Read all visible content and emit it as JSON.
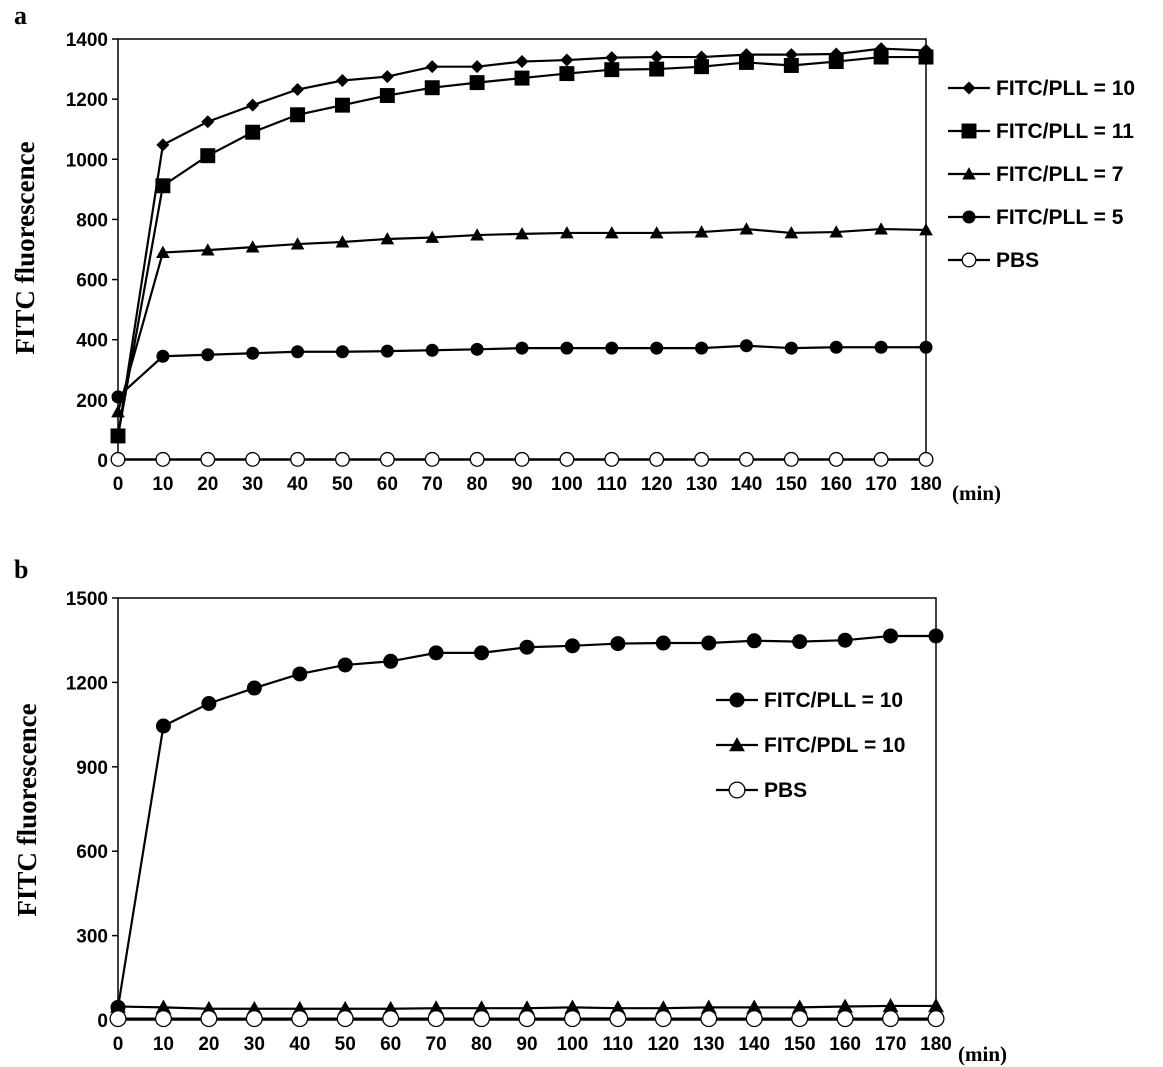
{
  "chart_data": [
    {
      "panel": "a",
      "type": "line",
      "ylabel": "FITC fluorescence",
      "xunit": "(min)",
      "x": [
        0,
        10,
        20,
        30,
        40,
        50,
        60,
        70,
        80,
        90,
        100,
        110,
        120,
        130,
        140,
        150,
        160,
        170,
        180
      ],
      "ylim": [
        0,
        1400
      ],
      "yticks": [
        0,
        200,
        400,
        600,
        800,
        1000,
        1200,
        1400
      ],
      "grid": false,
      "legend_position": "right",
      "series": [
        {
          "name": "FITC/PLL = 10",
          "marker": "diamond",
          "values": [
            80,
            1048,
            1125,
            1180,
            1232,
            1262,
            1275,
            1308,
            1308,
            1325,
            1330,
            1338,
            1340,
            1340,
            1348,
            1348,
            1350,
            1368,
            1362
          ]
        },
        {
          "name": "FITC/PLL = 11",
          "marker": "square",
          "values": [
            80,
            912,
            1012,
            1090,
            1148,
            1180,
            1212,
            1238,
            1255,
            1270,
            1285,
            1298,
            1300,
            1308,
            1322,
            1312,
            1325,
            1340,
            1340
          ]
        },
        {
          "name": "FITC/PLL = 7",
          "marker": "triangle",
          "values": [
            160,
            690,
            698,
            708,
            718,
            725,
            735,
            740,
            748,
            752,
            755,
            755,
            755,
            758,
            768,
            755,
            758,
            768,
            765
          ]
        },
        {
          "name": "FITC/PLL = 5",
          "marker": "circle",
          "values": [
            210,
            345,
            350,
            355,
            360,
            360,
            362,
            365,
            368,
            372,
            372,
            372,
            372,
            372,
            380,
            372,
            375,
            375,
            375
          ]
        },
        {
          "name": "PBS",
          "marker": "open-circle",
          "values": [
            2,
            2,
            2,
            2,
            2,
            2,
            2,
            2,
            2,
            2,
            2,
            2,
            2,
            2,
            2,
            2,
            2,
            2,
            2
          ]
        }
      ]
    },
    {
      "panel": "b",
      "type": "line",
      "ylabel": "FITC fluorescence",
      "xunit": "(min)",
      "x": [
        0,
        10,
        20,
        30,
        40,
        50,
        60,
        70,
        80,
        90,
        100,
        110,
        120,
        130,
        140,
        150,
        160,
        170,
        180
      ],
      "ylim": [
        0,
        1500
      ],
      "yticks": [
        0,
        300,
        600,
        900,
        1200,
        1500
      ],
      "grid": false,
      "legend_position": "right",
      "series": [
        {
          "name": "FITC/PLL = 10",
          "marker": "circle",
          "values": [
            45,
            1045,
            1125,
            1180,
            1230,
            1262,
            1275,
            1305,
            1305,
            1325,
            1330,
            1338,
            1340,
            1340,
            1348,
            1345,
            1350,
            1365,
            1365
          ]
        },
        {
          "name": "FITC/PDL = 10",
          "marker": "triangle",
          "values": [
            48,
            45,
            40,
            40,
            40,
            40,
            40,
            42,
            42,
            42,
            45,
            42,
            42,
            45,
            45,
            45,
            48,
            50,
            50
          ]
        },
        {
          "name": "PBS",
          "marker": "open-circle",
          "values": [
            5,
            5,
            5,
            5,
            5,
            5,
            5,
            5,
            5,
            5,
            5,
            5,
            5,
            5,
            5,
            5,
            5,
            5,
            5
          ]
        }
      ]
    }
  ]
}
